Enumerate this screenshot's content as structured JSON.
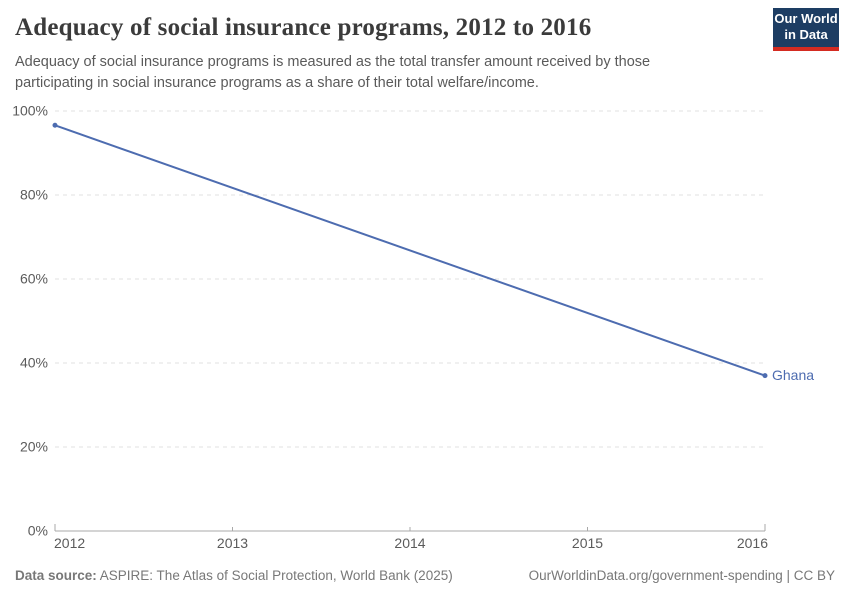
{
  "header": {
    "title": "Adequacy of social insurance programs, 2012 to 2016",
    "subtitle_lines": [
      "Adequacy of social insurance programs is measured as the total transfer amount received by those",
      "participating in social insurance programs as a share of their total welfare/income."
    ],
    "logo_lines": [
      "Our World",
      "in Data"
    ]
  },
  "chart_data": {
    "type": "line",
    "title": "Adequacy of social insurance programs, 2012 to 2016",
    "xlabel": "",
    "ylabel": "",
    "xlim": [
      2012,
      2016
    ],
    "ylim": [
      0,
      100
    ],
    "x_ticks": [
      2012,
      2013,
      2014,
      2015,
      2016
    ],
    "y_ticks": [
      0,
      20,
      40,
      60,
      80,
      100
    ],
    "y_tick_suffix": "%",
    "grid": "horizontal-dashed",
    "legend": "inline-end-label",
    "series": [
      {
        "name": "Ghana",
        "color": "#4d6cb0",
        "points": [
          {
            "x": 2012,
            "y": 96.6
          },
          {
            "x": 2016,
            "y": 37
          }
        ]
      }
    ]
  },
  "footer": {
    "source_label": "Data source:",
    "source_text": " ASPIRE: The Atlas of Social Protection, World Bank (2025)",
    "right_text": "OurWorldinData.org/government-spending | CC BY"
  },
  "colors": {
    "accent_blue": "#4d6cb0",
    "grid": "#e0e0e0",
    "axis": "#a9a9a9",
    "tick_text": "#5b5b5b",
    "title_text": "#3b3b3b",
    "subtitle_text": "#5a5a5a",
    "footer_text": "#787878",
    "logo_bg": "#1d3d63",
    "logo_bar": "#d42b21"
  }
}
